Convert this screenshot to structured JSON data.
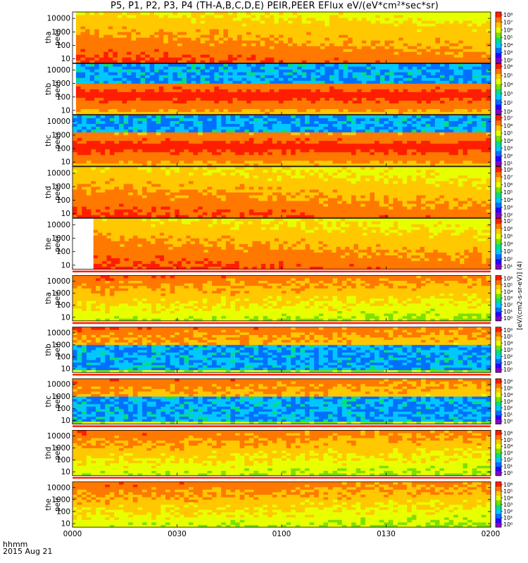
{
  "title": "P5, P1, P2, P3, P4 (TH-A,B,C,D,E) PEIR,PEER EFlux eV/(eV*cm²*sec*sr)",
  "footer": {
    "time_format": "hhmm",
    "date": "2015 Aug 21"
  },
  "colorbar_label": "[eV/(cm2-s-sr-eV)] (4)",
  "colormap": [
    "#ffffff",
    "#8a00c8",
    "#2a00ff",
    "#0070ff",
    "#00c8ff",
    "#00e080",
    "#7ce000",
    "#e8ff00",
    "#ffc800",
    "#ff7800",
    "#ff1e00",
    "#ff1e00"
  ],
  "chart_data": {
    "type": "heatmap",
    "xlabel": "",
    "x_ticks": [
      "0000",
      "0030",
      "0100",
      "0130",
      "0200"
    ],
    "x_tick_minutes": [
      0,
      30,
      60,
      90,
      120
    ],
    "xlim_minutes": [
      0,
      120
    ],
    "y_scale": "log",
    "ylim": [
      5,
      30000
    ],
    "y_ticks": [
      "10",
      "100",
      "1000",
      "10000"
    ],
    "y_tick_values": [
      10,
      100,
      1000,
      10000
    ],
    "colorbar_scale": "log",
    "panels": [
      {
        "label1": "tha",
        "label2": "peer",
        "cb_ticks": [
          "10⁸",
          "10⁷",
          "10⁶",
          "10⁵",
          "10⁴",
          "10³",
          "10²"
        ],
        "cb_exp": [
          8,
          2
        ],
        "data_start_minute": 1,
        "noise_band": [
          0,
          0
        ],
        "gap_bar": false
      },
      {
        "label1": "thb",
        "label2": "peer",
        "cb_ticks": [
          "10⁶",
          "10⁵",
          "10⁴",
          "10³",
          "10²",
          "10¹"
        ],
        "cb_exp": [
          6,
          1
        ],
        "data_start_minute": 1,
        "noise_band": [
          1000,
          30000
        ],
        "gap_bar": false
      },
      {
        "label1": "thc",
        "label2": "peer",
        "cb_ticks": [
          "10⁷",
          "10⁶",
          "10⁵",
          "10⁴",
          "10³",
          "10²",
          "10¹"
        ],
        "cb_exp": [
          7,
          1
        ],
        "data_start_minute": 0,
        "noise_band": [
          1200,
          30000
        ],
        "gap_bar": false
      },
      {
        "label1": "thd",
        "label2": "peer",
        "cb_ticks": [
          "10⁸",
          "10⁷",
          "10⁶",
          "10⁵",
          "10⁴",
          "10³",
          "10²"
        ],
        "cb_exp": [
          8,
          2
        ],
        "data_start_minute": 0,
        "noise_band": [
          0,
          0
        ],
        "gap_bar": false
      },
      {
        "label1": "the",
        "label2": "peer",
        "cb_ticks": [
          "10⁷",
          "10⁶",
          "10⁵",
          "10⁴",
          "10³",
          "10²",
          "10¹"
        ],
        "cb_exp": [
          7,
          1
        ],
        "data_start_minute": 6,
        "noise_band": [
          0,
          0
        ],
        "gap_bar": false
      },
      {
        "label1": "tha",
        "label2": "peir",
        "cb_ticks": [
          "10⁶",
          "10⁵",
          "10⁴",
          "10³",
          "10²",
          "10¹",
          "10⁰"
        ],
        "cb_exp": [
          6,
          0
        ],
        "data_start_minute": 0,
        "noise_band": [
          0,
          0
        ],
        "gap_bar": true
      },
      {
        "label1": "thb",
        "label2": "peir",
        "cb_ticks": [
          "10⁶",
          "10⁵",
          "10⁴",
          "10³",
          "10²",
          "10¹",
          "10⁰"
        ],
        "cb_exp": [
          6,
          0
        ],
        "data_start_minute": 0,
        "noise_band": [
          8,
          1000
        ],
        "gap_bar": true
      },
      {
        "label1": "thc",
        "label2": "peir",
        "cb_ticks": [
          "10⁶",
          "10⁵",
          "10⁴",
          "10³",
          "10²",
          "10¹",
          "10⁰"
        ],
        "cb_exp": [
          6,
          0
        ],
        "data_start_minute": 0,
        "noise_band": [
          8,
          1000
        ],
        "gap_bar": true
      },
      {
        "label1": "thd",
        "label2": "peir",
        "cb_ticks": [
          "10⁶",
          "10⁵",
          "10⁴",
          "10³",
          "10²",
          "10¹",
          "10⁰"
        ],
        "cb_exp": [
          6,
          0
        ],
        "data_start_minute": 0,
        "noise_band": [
          0,
          0
        ],
        "gap_bar": true
      },
      {
        "label1": "the",
        "label2": "peir",
        "cb_ticks": [
          "10⁶",
          "10⁵",
          "10⁴",
          "10³",
          "10²",
          "10¹",
          "10⁰"
        ],
        "cb_exp": [
          6,
          0
        ],
        "data_start_minute": 0,
        "noise_band": [
          0,
          0
        ],
        "gap_bar": true
      }
    ]
  }
}
